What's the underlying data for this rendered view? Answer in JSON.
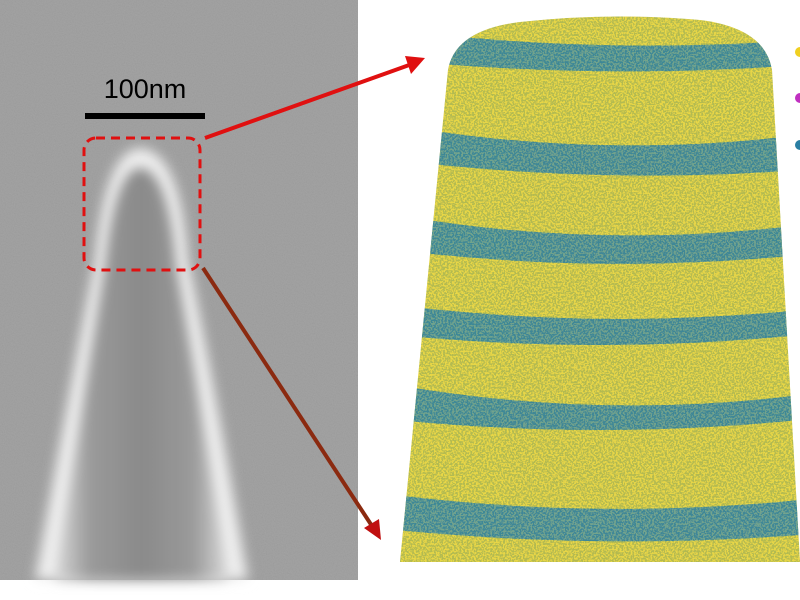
{
  "scale_bar": {
    "label": "100nm"
  }
}
